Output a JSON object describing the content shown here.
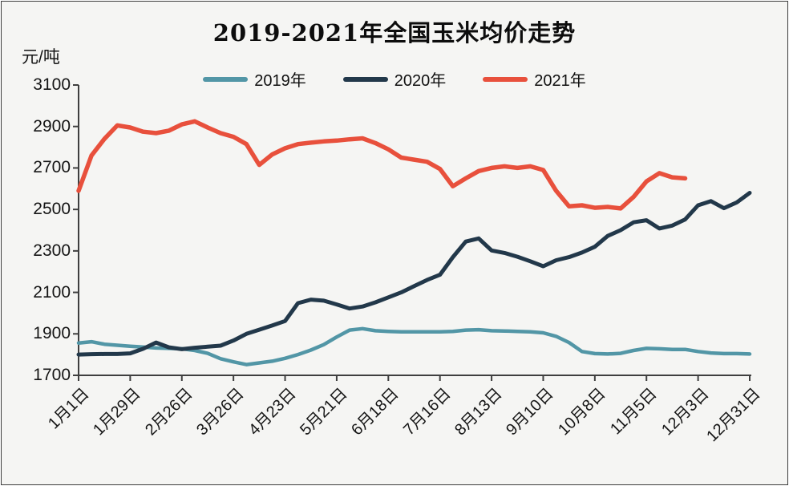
{
  "page": {
    "background": "#f5f5f3",
    "frame_border_color": "#3d3d3d"
  },
  "chart_data": {
    "type": "line",
    "title": "2019-2021年全国玉米均价走势",
    "unit_label": "元/吨",
    "xlabel": "",
    "ylabel": "元/吨",
    "ylim": [
      1700,
      3100
    ],
    "y_ticks": [
      3100,
      2900,
      2700,
      2500,
      2300,
      2100,
      1900,
      1700
    ],
    "x_tick_labels": [
      "1月1日",
      "1月29日",
      "2月26日",
      "3月26日",
      "4月23日",
      "5月21日",
      "6月18日",
      "7月16日",
      "8月13日",
      "9月10日",
      "10月8日",
      "11月5日",
      "12月3日",
      "12月31日"
    ],
    "weeks_per_x_tick": 4,
    "total_weeks": 52,
    "grid": false,
    "legend_position": "top-center",
    "axis_color": "#3f3f3f",
    "series": [
      {
        "name": "2019年",
        "color": "#5296a6",
        "line_width": 4.5,
        "values": [
          1856,
          1862,
          1850,
          1845,
          1840,
          1836,
          1832,
          1830,
          1828,
          1820,
          1806,
          1780,
          1765,
          1752,
          1760,
          1768,
          1782,
          1800,
          1822,
          1848,
          1885,
          1918,
          1925,
          1915,
          1912,
          1910,
          1910,
          1910,
          1910,
          1912,
          1918,
          1920,
          1915,
          1914,
          1912,
          1910,
          1905,
          1888,
          1858,
          1815,
          1805,
          1803,
          1806,
          1820,
          1830,
          1828,
          1825,
          1825,
          1815,
          1808,
          1805,
          1805,
          1803
        ]
      },
      {
        "name": "2020年",
        "color": "#22384a",
        "line_width": 5,
        "values": [
          1800,
          1802,
          1803,
          1803,
          1806,
          1828,
          1858,
          1835,
          1826,
          1833,
          1838,
          1843,
          1868,
          1900,
          1920,
          1940,
          1962,
          2048,
          2065,
          2060,
          2042,
          2022,
          2032,
          2052,
          2076,
          2100,
          2130,
          2160,
          2185,
          2270,
          2345,
          2360,
          2302,
          2290,
          2272,
          2250,
          2226,
          2255,
          2270,
          2292,
          2320,
          2372,
          2400,
          2438,
          2448,
          2408,
          2422,
          2452,
          2520,
          2540,
          2506,
          2534,
          2580
        ]
      },
      {
        "name": "2021年",
        "color": "#e8503c",
        "line_width": 5.5,
        "values": [
          2590,
          2760,
          2840,
          2905,
          2895,
          2875,
          2868,
          2880,
          2910,
          2925,
          2895,
          2868,
          2850,
          2815,
          2715,
          2765,
          2795,
          2815,
          2822,
          2828,
          2832,
          2838,
          2843,
          2820,
          2790,
          2750,
          2740,
          2730,
          2695,
          2612,
          2650,
          2685,
          2700,
          2708,
          2700,
          2708,
          2690,
          2590,
          2515,
          2520,
          2508,
          2512,
          2505,
          2560,
          2635,
          2675,
          2655,
          2650
        ]
      }
    ]
  }
}
